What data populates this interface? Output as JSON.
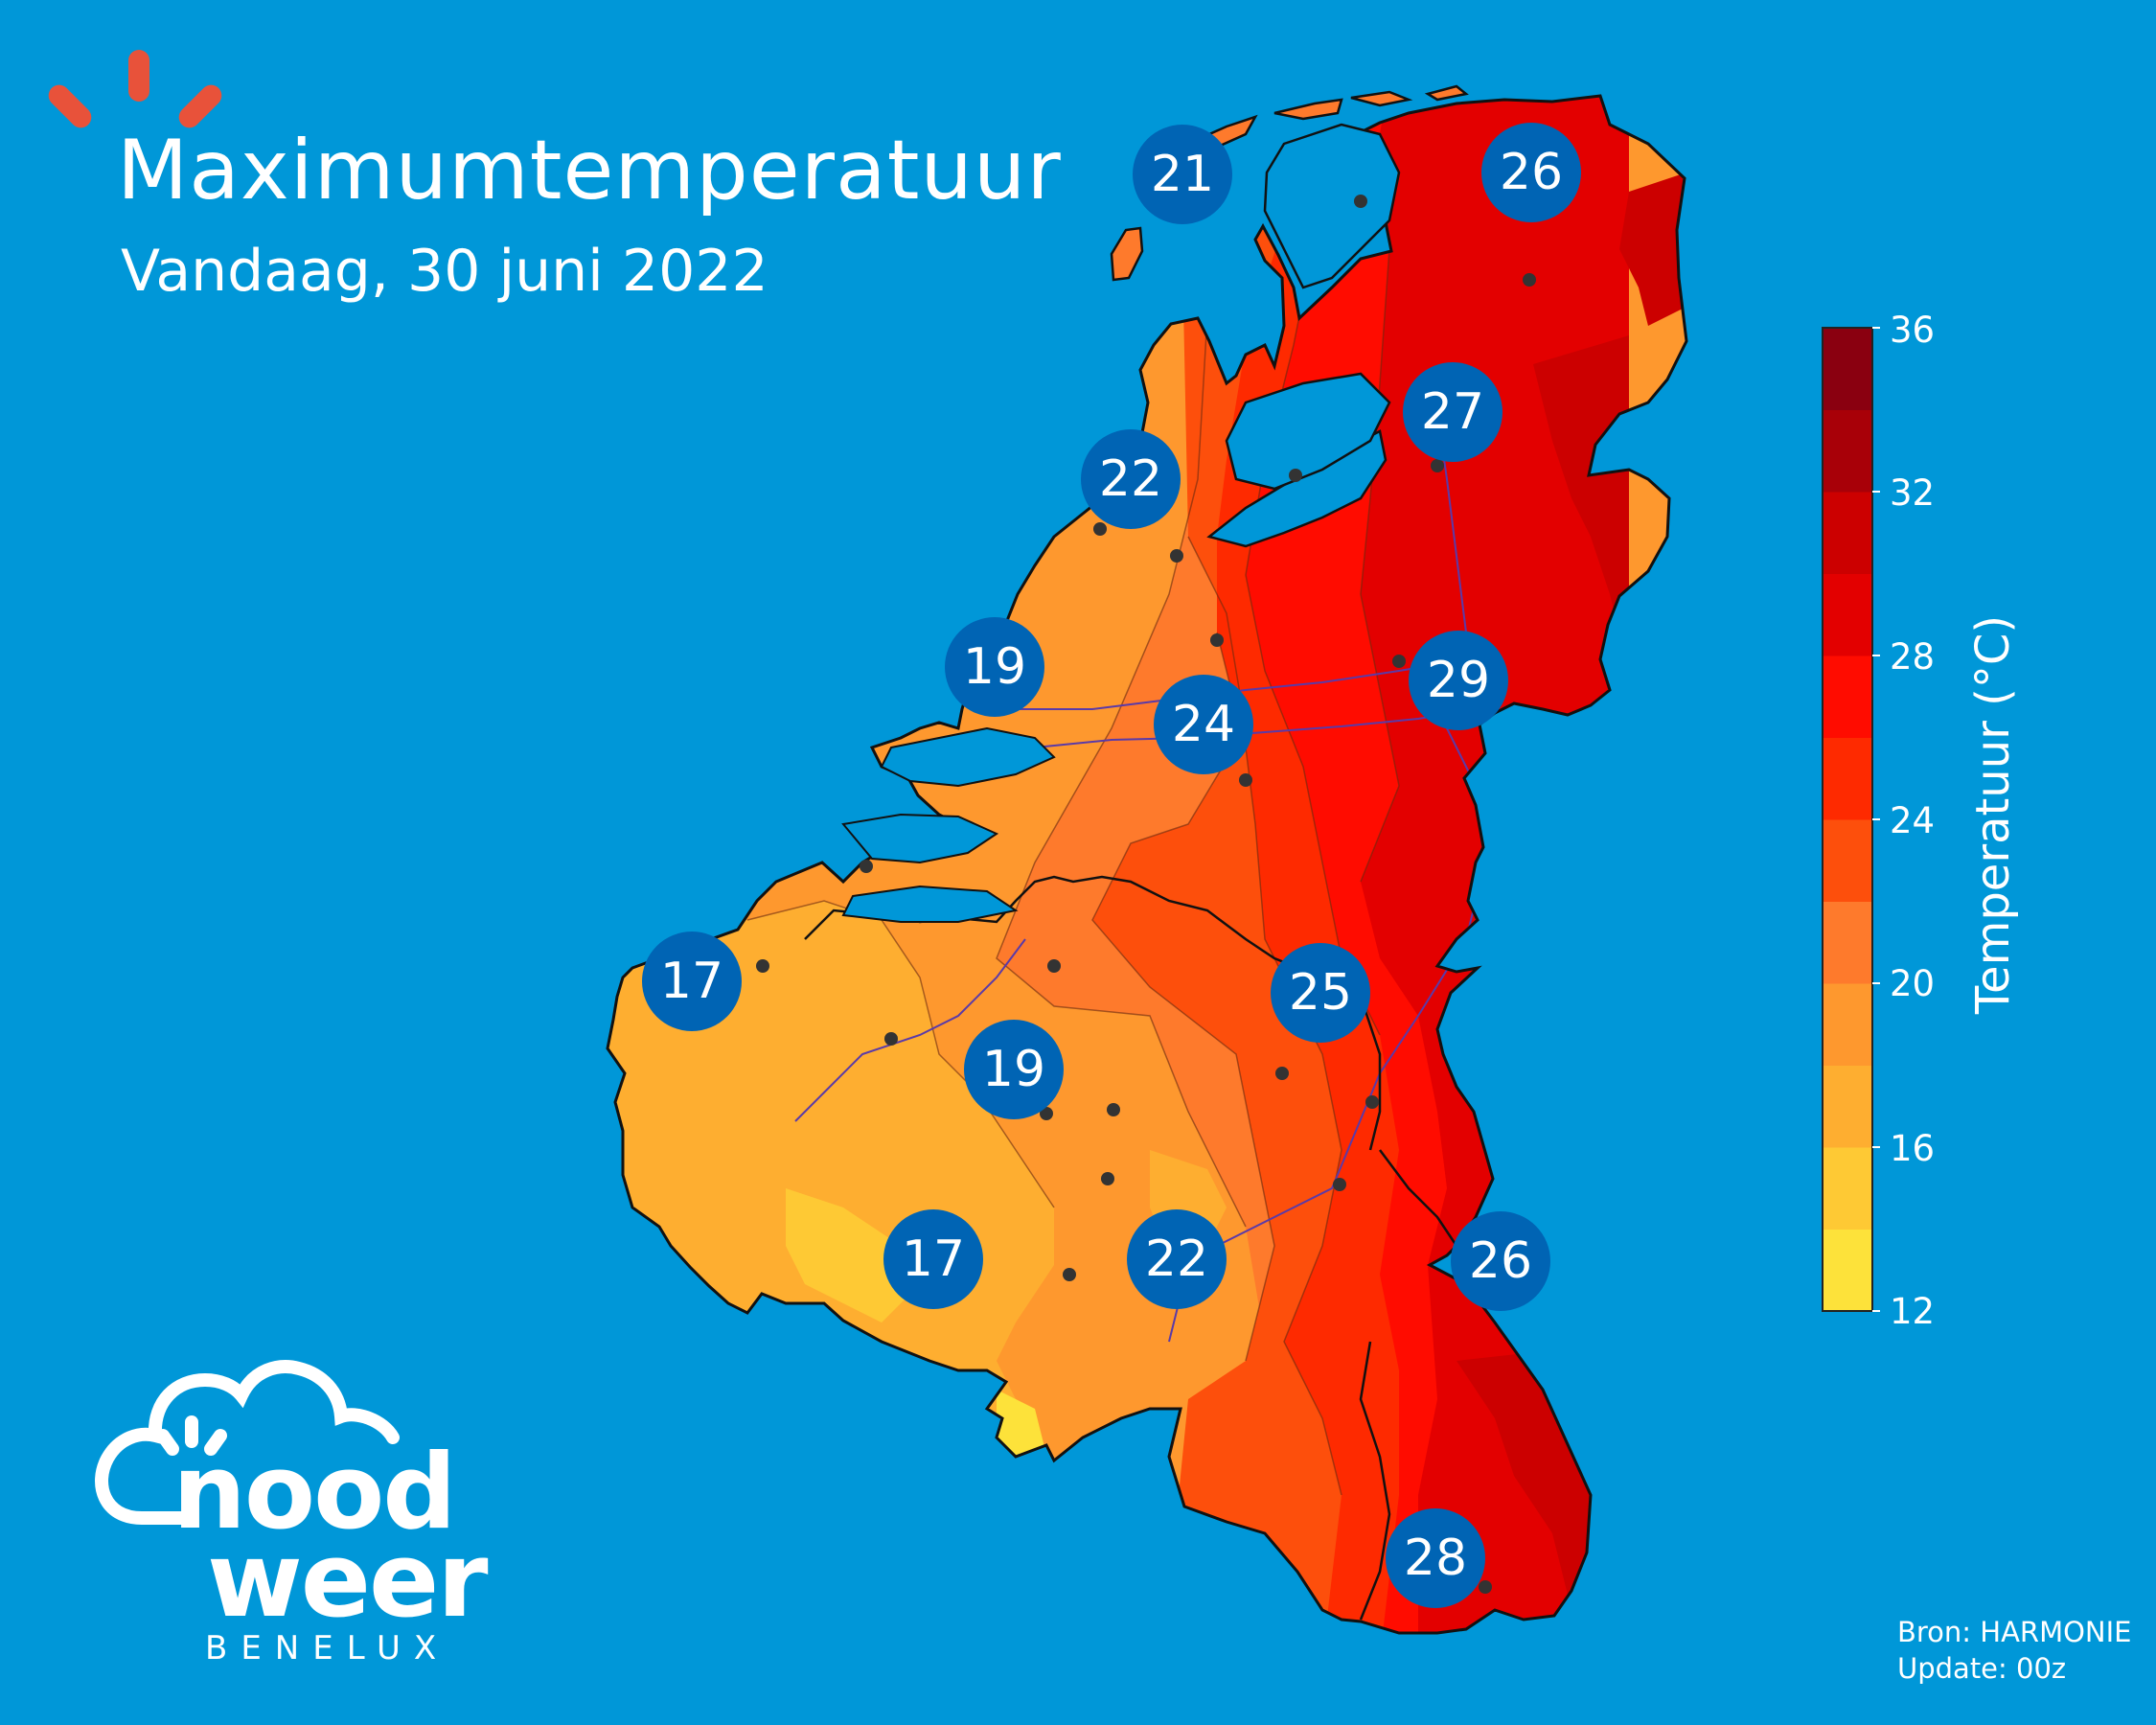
{
  "header": {
    "title": "Maximumtemperatuur",
    "subtitle": "Vandaag, 30 juni 2022"
  },
  "colorbar": {
    "title": "Temperatuur (°C)",
    "range": [
      12,
      36
    ],
    "step": 2,
    "ticks": [
      "36",
      "32",
      "28",
      "24",
      "20",
      "16",
      "12"
    ],
    "colors": [
      "#fde23a",
      "#fec934",
      "#feae30",
      "#fe982e",
      "#fe7a2c",
      "#fd4f0c",
      "#fe2a00",
      "#ff0c00",
      "#e30000",
      "#cc0000",
      "#a80008",
      "#8a0010"
    ]
  },
  "source": {
    "line1": "Bron: HARMONIE",
    "line2": "Update: 00z"
  },
  "logo": {
    "line1": "nood",
    "line2": "weer",
    "line3": "BENELUX"
  },
  "badges": [
    {
      "name": "badge-noord-holland-north",
      "value": "21"
    },
    {
      "name": "badge-groningen",
      "value": "26"
    },
    {
      "name": "badge-drenthe",
      "value": "27"
    },
    {
      "name": "badge-noord-holland",
      "value": "22"
    },
    {
      "name": "badge-zuid-holland-coast",
      "value": "19"
    },
    {
      "name": "badge-twente",
      "value": "29"
    },
    {
      "name": "badge-utrecht-gelderland",
      "value": "24"
    },
    {
      "name": "badge-west-flanders",
      "value": "17"
    },
    {
      "name": "badge-limburg",
      "value": "25"
    },
    {
      "name": "badge-brussels",
      "value": "19"
    },
    {
      "name": "badge-hainaut",
      "value": "17"
    },
    {
      "name": "badge-namur",
      "value": "22"
    },
    {
      "name": "badge-eifel",
      "value": "26"
    },
    {
      "name": "badge-luxembourg",
      "value": "28"
    }
  ],
  "colors": {
    "background": "#0097d8",
    "badge": "#0064b4",
    "text": "#ffffff",
    "logo_dashes": "#e8523a"
  }
}
